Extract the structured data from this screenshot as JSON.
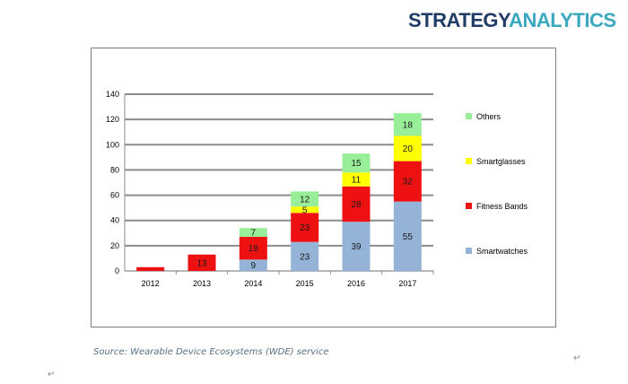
{
  "logo": {
    "strategy": "STRATEGY",
    "analytics": "ANALYTICS"
  },
  "source": "Source: Wearable Device Ecosystems (WDE) service",
  "marks": {
    "return_left": "↵",
    "return_right": "↵"
  },
  "chart_data": {
    "type": "bar",
    "stacked": true,
    "categories": [
      "2012",
      "2013",
      "2014",
      "2015",
      "2016",
      "2017"
    ],
    "ylim": [
      0,
      140
    ],
    "yticks": [
      0,
      20,
      40,
      60,
      80,
      100,
      120,
      140
    ],
    "grid": true,
    "legend_position": "right",
    "series": [
      {
        "name": "Smartwatches",
        "color": "#95b3d7",
        "values": [
          null,
          null,
          9,
          23,
          39,
          55
        ],
        "labels": [
          "",
          "",
          "9",
          "23",
          "39",
          "55"
        ]
      },
      {
        "name": "Fitness Bands",
        "color": "#ee1111",
        "values": [
          3,
          13,
          18,
          23,
          28,
          32
        ],
        "labels": [
          "",
          "13",
          "18",
          "23",
          "28",
          "32"
        ]
      },
      {
        "name": "Smartglasses",
        "color": "#ffff00",
        "values": [
          null,
          null,
          null,
          5,
          11,
          20
        ],
        "labels": [
          "",
          "",
          "",
          "5",
          "11",
          "20"
        ]
      },
      {
        "name": "Others",
        "color": "#99ee99",
        "values": [
          null,
          null,
          7,
          12,
          15,
          18
        ],
        "labels": [
          "",
          "",
          "7",
          "12",
          "15",
          "18"
        ]
      }
    ]
  }
}
